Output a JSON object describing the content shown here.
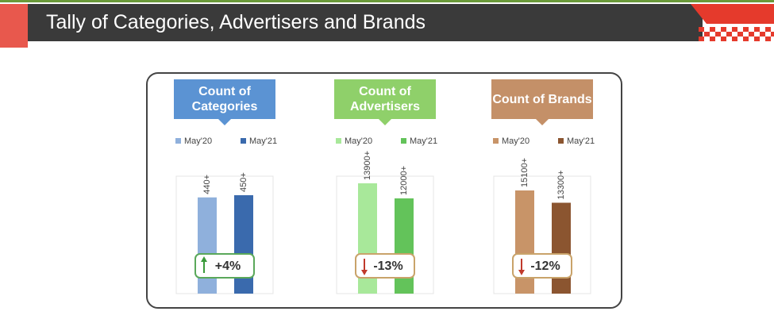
{
  "title": "Tally of Categories, Advertisers and Brands",
  "chart_data": [
    {
      "type": "bar",
      "title": "Count of Categories",
      "title_color": "#5b93d3",
      "categories": [
        "May'20",
        "May'21"
      ],
      "values": [
        440,
        450
      ],
      "value_labels": [
        "440+",
        "450+"
      ],
      "colors": [
        "#8fb0dc",
        "#3a6aad"
      ],
      "annotation": "+4%"
    },
    {
      "type": "bar",
      "title": "Count of Advertisers",
      "title_color": "#8fd06a",
      "categories": [
        "May'20",
        "May'21"
      ],
      "values": [
        13900,
        12000
      ],
      "value_labels": [
        "13900+",
        "12000+"
      ],
      "colors": [
        "#a8e89a",
        "#63c35a"
      ],
      "annotation": "-13%"
    },
    {
      "type": "bar",
      "title": "Count of Brands",
      "title_color": "#c49068",
      "categories": [
        "May'20",
        "May'21"
      ],
      "values": [
        15100,
        13300
      ],
      "value_labels": [
        "15100+",
        "13300+"
      ],
      "colors": [
        "#c89468",
        "#8b5530"
      ],
      "annotation": "-12%"
    }
  ]
}
